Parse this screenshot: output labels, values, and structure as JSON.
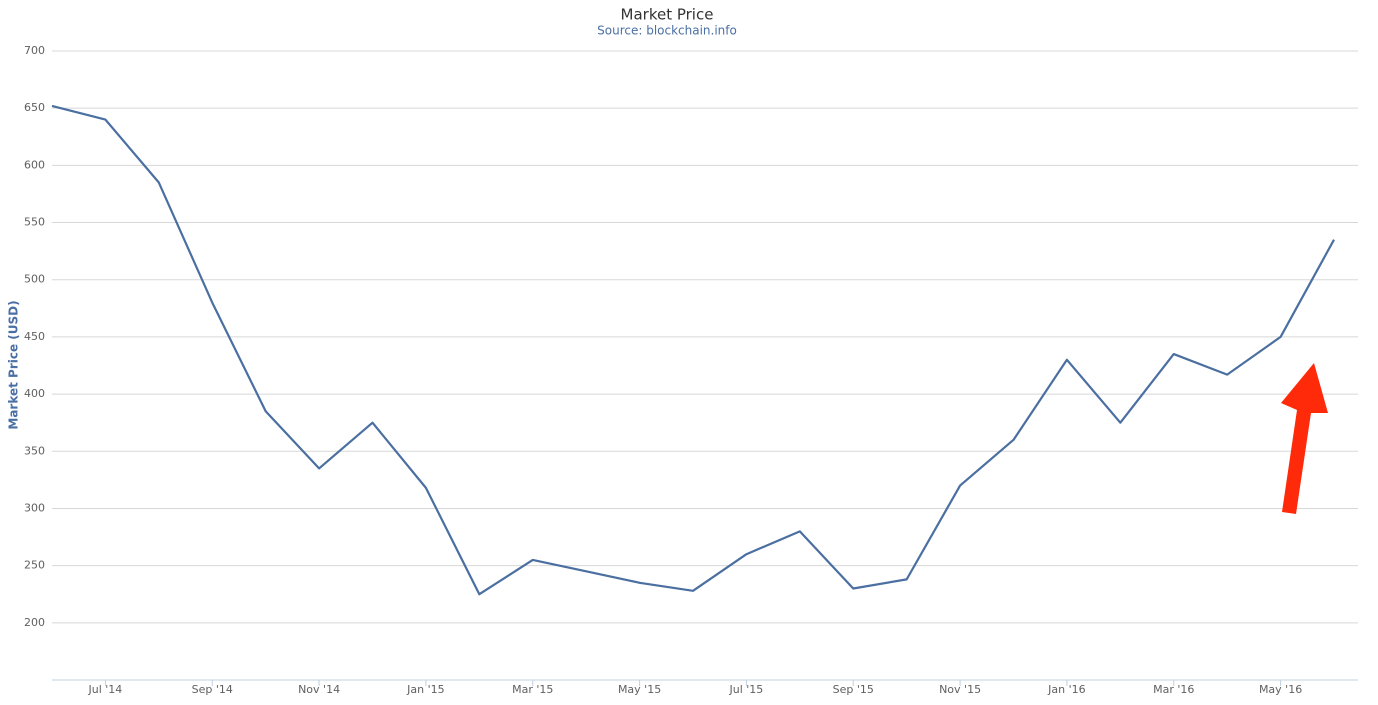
{
  "chart_data": {
    "type": "line",
    "title": "Market Price",
    "subtitle": "Source: blockchain.info",
    "y_label": "Market Price (USD)",
    "x": [
      "2014-06",
      "2014-07",
      "2014-08",
      "2014-09",
      "2014-10",
      "2014-11",
      "2014-12",
      "2015-01",
      "2015-02",
      "2015-03",
      "2015-04",
      "2015-05",
      "2015-06",
      "2015-07",
      "2015-08",
      "2015-09",
      "2015-10",
      "2015-11",
      "2015-12",
      "2016-01",
      "2016-02",
      "2016-03",
      "2016-04",
      "2016-05",
      "2016-06"
    ],
    "series": [
      {
        "name": "Market Price",
        "color": "#4a6fa0",
        "values": [
          652,
          640,
          585,
          480,
          385,
          335,
          375,
          318,
          225,
          255,
          245,
          235,
          228,
          260,
          280,
          230,
          238,
          320,
          360,
          430,
          375,
          435,
          417,
          450,
          535
        ]
      }
    ],
    "xlim": [
      "2014-06",
      "2016-06"
    ],
    "xticks": [
      {
        "value": "2014-07",
        "label": "Jul '14"
      },
      {
        "value": "2014-09",
        "label": "Sep '14"
      },
      {
        "value": "2014-11",
        "label": "Nov '14"
      },
      {
        "value": "2015-01",
        "label": "Jan '15"
      },
      {
        "value": "2015-03",
        "label": "Mar '15"
      },
      {
        "value": "2015-05",
        "label": "May '15"
      },
      {
        "value": "2015-07",
        "label": "Jul '15"
      },
      {
        "value": "2015-09",
        "label": "Sep '15"
      },
      {
        "value": "2015-11",
        "label": "Nov '15"
      },
      {
        "value": "2016-01",
        "label": "Jan '16"
      },
      {
        "value": "2016-03",
        "label": "Mar '16"
      },
      {
        "value": "2016-05",
        "label": "May '16"
      }
    ],
    "ylim": [
      150,
      700
    ],
    "yticks": [
      200,
      250,
      300,
      350,
      400,
      450,
      500,
      550,
      600,
      650,
      700
    ],
    "grid": true
  }
}
